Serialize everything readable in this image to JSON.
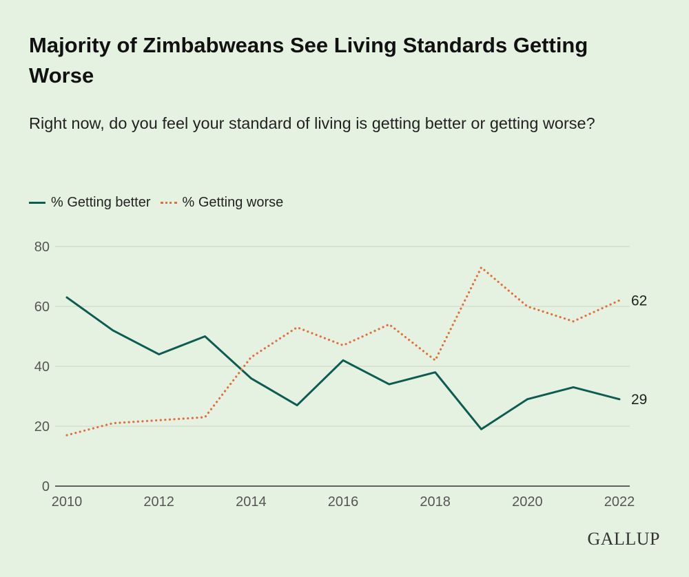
{
  "chart_data": {
    "type": "line",
    "title": "Majority of Zimbabweans See Living Standards Getting Worse",
    "subtitle": "Right now, do you feel your standard of living is getting better or getting worse?",
    "x": [
      2010,
      2011,
      2012,
      2013,
      2014,
      2015,
      2016,
      2017,
      2018,
      2019,
      2020,
      2021,
      2022
    ],
    "x_ticks": [
      "2010",
      "2012",
      "2014",
      "2016",
      "2018",
      "2020",
      "2022"
    ],
    "y_ticks": [
      "0",
      "20",
      "40",
      "60",
      "80"
    ],
    "ylim": [
      0,
      80
    ],
    "xlim": [
      2010,
      2022
    ],
    "grid": true,
    "legend_position": "top-left",
    "series": [
      {
        "name": "% Getting better",
        "values": [
          63,
          52,
          44,
          50,
          36,
          27,
          42,
          34,
          38,
          19,
          29,
          33,
          29
        ],
        "color": "#0d5c52",
        "style": "solid",
        "end_label": "29"
      },
      {
        "name": "% Getting worse",
        "values": [
          17,
          21,
          22,
          23,
          43,
          53,
          47,
          54,
          42,
          73,
          60,
          55,
          62
        ],
        "color": "#e0703c",
        "style": "dotted",
        "end_label": "62"
      }
    ]
  },
  "brand": {
    "logo_text": "GALLUP"
  }
}
